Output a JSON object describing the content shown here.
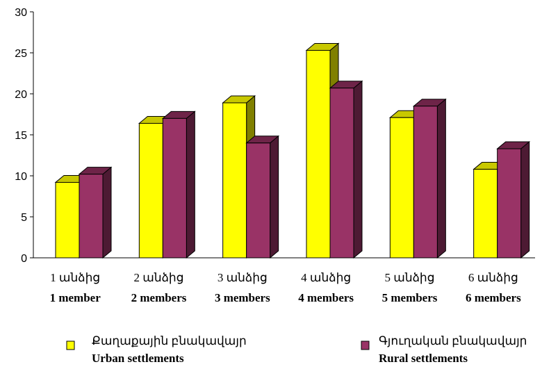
{
  "chart_data": {
    "type": "bar",
    "title": "",
    "xlabel": "",
    "ylabel": "",
    "ylim": [
      0,
      30
    ],
    "yticks": [
      "0",
      "5",
      "10",
      "15",
      "20",
      "25",
      "30"
    ],
    "categories": [
      {
        "line1": "1 անձից",
        "line2": "1 member"
      },
      {
        "line1": "2 անձից",
        "line2": "2 members"
      },
      {
        "line1": "3 անձից",
        "line2": "3 members"
      },
      {
        "line1": "4 անձից",
        "line2": "4 members"
      },
      {
        "line1": "5 անձից",
        "line2": "5 members"
      },
      {
        "line1": "6 անձից",
        "line2": "6 members"
      }
    ],
    "series": [
      {
        "name_line1": "Քաղաքային բնակավայր",
        "name_line2": "Urban settlements",
        "color": "#ffff00",
        "side_color": "#808000",
        "values": [
          9.2,
          16.4,
          18.9,
          25.3,
          17.1,
          10.8
        ]
      },
      {
        "name_line1": "Գյուղական բնակավայր",
        "name_line2": "Rural settlements",
        "color": "#993366",
        "side_color": "#4d1a33",
        "values": [
          10.2,
          17.0,
          14.0,
          20.7,
          18.5,
          13.3
        ]
      }
    ],
    "grid": false,
    "legend_position": "bottom"
  }
}
